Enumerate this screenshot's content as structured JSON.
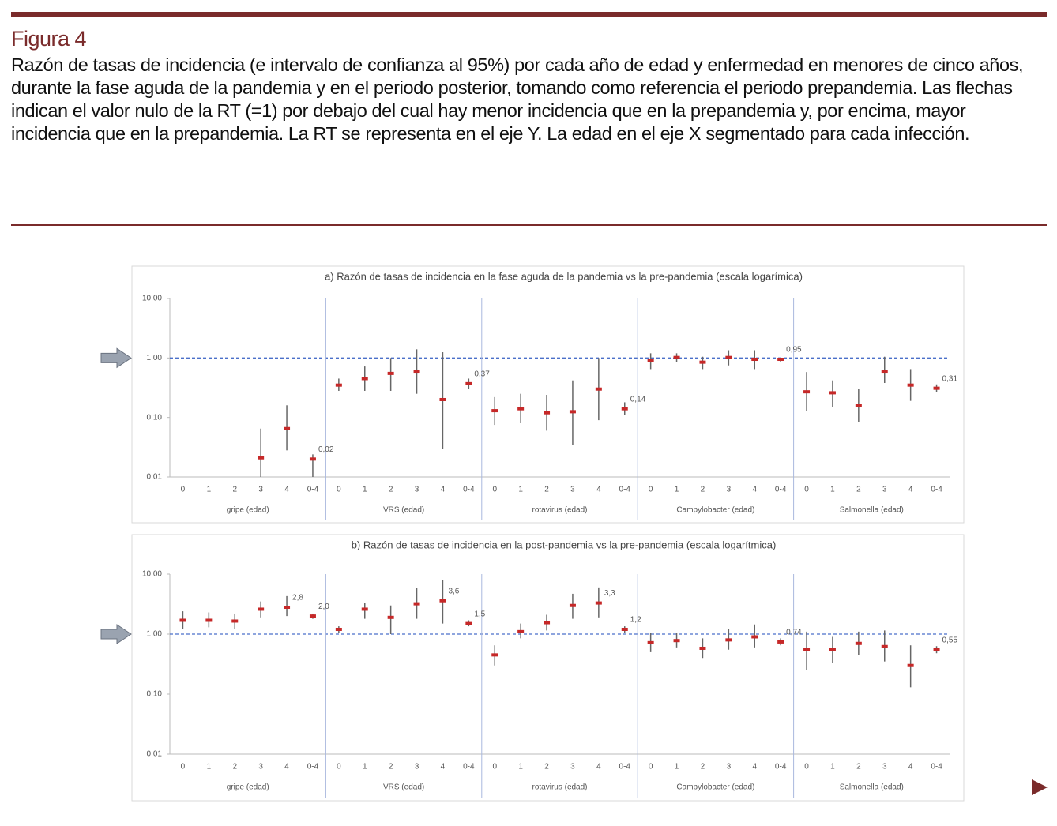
{
  "figure": {
    "label": "Figura 4",
    "caption": "Razón de tasas de incidencia (e intervalo de confianza al 95%) por cada año de edad y enfermedad en menores de cinco años, durante la fase aguda de la pandemia y en el periodo posterior, tomando como referencia el periodo prepandemia. Las flechas indican el valor nulo de la RT (=1) por debajo del cual hay menor incidencia que en la prepandemia y, por encima, mayor incidencia que en la prepandemia. La RT se representa en el eje Y. La edad en el eje X segmentado para cada infección."
  },
  "chart_data": [
    {
      "type": "errorbar",
      "title": "a) Razón de tasas de incidencia en la fase aguda de la pandemia vs la pre-pandemia (escala logarímica)",
      "groups": [
        "gripe (edad)",
        "VRS (edad)",
        "rotavirus (edad)",
        "Campylobacter (edad)",
        "Salmonella (edad)"
      ],
      "categories": [
        "0",
        "1",
        "2",
        "3",
        "4",
        "0-4",
        "0",
        "1",
        "2",
        "3",
        "4",
        "0-4",
        "0",
        "1",
        "2",
        "3",
        "4",
        "0-4",
        "0",
        "1",
        "2",
        "3",
        "4",
        "0-4",
        "0",
        "1",
        "2",
        "3",
        "4",
        "0-4"
      ],
      "values": [
        null,
        null,
        null,
        0.021,
        0.065,
        0.02,
        0.35,
        0.45,
        0.55,
        0.6,
        0.2,
        0.37,
        0.13,
        0.14,
        0.12,
        0.125,
        0.3,
        0.14,
        0.9,
        1.02,
        0.85,
        1.02,
        0.95,
        0.95,
        0.27,
        0.26,
        0.16,
        0.6,
        0.35,
        0.31
      ],
      "lower": [
        null,
        null,
        null,
        0.01,
        0.028,
        0.01,
        0.28,
        0.28,
        0.28,
        0.25,
        0.03,
        0.3,
        0.075,
        0.08,
        0.06,
        0.035,
        0.09,
        0.11,
        0.65,
        0.85,
        0.65,
        0.75,
        0.65,
        0.85,
        0.13,
        0.15,
        0.085,
        0.38,
        0.19,
        0.27
      ],
      "upper": [
        null,
        null,
        null,
        0.065,
        0.16,
        0.024,
        0.45,
        0.72,
        1.0,
        1.4,
        1.25,
        0.45,
        0.22,
        0.25,
        0.24,
        0.42,
        1.0,
        0.18,
        1.2,
        1.2,
        1.05,
        1.35,
        1.35,
        1.0,
        0.58,
        0.42,
        0.3,
        1.05,
        0.65,
        0.36
      ],
      "value_labels": [
        null,
        null,
        null,
        null,
        null,
        "0,02",
        null,
        null,
        null,
        null,
        null,
        "0,37",
        null,
        null,
        null,
        null,
        null,
        "0,14",
        null,
        null,
        null,
        null,
        null,
        "0,95",
        null,
        null,
        null,
        null,
        null,
        "0,31"
      ],
      "color": "#c62828",
      "error_color": "#666666",
      "log_scale": true,
      "ylim": [
        0.01,
        10
      ],
      "yticks": [
        {
          "value": 0.01,
          "label": "0,01"
        },
        {
          "value": 0.1,
          "label": "0,10"
        },
        {
          "value": 1,
          "label": "1,00"
        },
        {
          "value": 10,
          "label": "10,00"
        }
      ],
      "reference_line": 1,
      "grid": false
    },
    {
      "type": "errorbar",
      "title": "b) Razón de tasas de incidencia en la post-pandemia vs la pre-pandemia (escala logarítmica)",
      "groups": [
        "gripe (edad)",
        "VRS (edad)",
        "rotavirus (edad)",
        "Campylobacter (edad)",
        "Salmonella (edad)"
      ],
      "categories": [
        "0",
        "1",
        "2",
        "3",
        "4",
        "0-4",
        "0",
        "1",
        "2",
        "3",
        "4",
        "0-4",
        "0",
        "1",
        "2",
        "3",
        "4",
        "0-4",
        "0",
        "1",
        "2",
        "3",
        "4",
        "0-4",
        "0",
        "1",
        "2",
        "3",
        "4",
        "0-4"
      ],
      "values": [
        1.7,
        1.7,
        1.65,
        2.6,
        2.8,
        2.0,
        1.2,
        2.6,
        1.9,
        3.2,
        3.6,
        1.5,
        0.45,
        1.1,
        1.55,
        3.0,
        3.3,
        1.2,
        0.72,
        0.78,
        0.58,
        0.8,
        0.9,
        0.74,
        0.55,
        0.55,
        0.7,
        0.62,
        0.3,
        0.55
      ],
      "lower": [
        1.2,
        1.3,
        1.2,
        1.9,
        2.0,
        1.8,
        1.05,
        1.8,
        1.0,
        1.8,
        1.5,
        1.35,
        0.3,
        0.85,
        1.15,
        1.8,
        1.9,
        1.05,
        0.5,
        0.6,
        0.4,
        0.55,
        0.6,
        0.65,
        0.25,
        0.33,
        0.45,
        0.35,
        0.13,
        0.48
      ],
      "upper": [
        2.4,
        2.3,
        2.2,
        3.5,
        4.3,
        2.2,
        1.35,
        3.3,
        3.0,
        5.8,
        8.0,
        1.7,
        0.65,
        1.5,
        2.1,
        4.7,
        6.0,
        1.35,
        1.05,
        1.05,
        0.85,
        1.2,
        1.45,
        0.85,
        1.1,
        0.9,
        1.1,
        1.15,
        0.65,
        0.63
      ],
      "value_labels": [
        null,
        null,
        null,
        null,
        "2,8",
        "2,0",
        null,
        null,
        null,
        null,
        "3,6",
        "1,5",
        null,
        null,
        null,
        null,
        "3,3",
        "1,2",
        null,
        null,
        null,
        null,
        null,
        "0,74",
        null,
        null,
        null,
        null,
        null,
        "0,55"
      ],
      "color": "#c62828",
      "error_color": "#666666",
      "log_scale": true,
      "ylim": [
        0.01,
        10
      ],
      "yticks": [
        {
          "value": 0.01,
          "label": "0,01"
        },
        {
          "value": 0.1,
          "label": "0,10"
        },
        {
          "value": 1,
          "label": "1,00"
        },
        {
          "value": 10,
          "label": "10,00"
        }
      ],
      "reference_line": 1,
      "grid": false
    }
  ]
}
